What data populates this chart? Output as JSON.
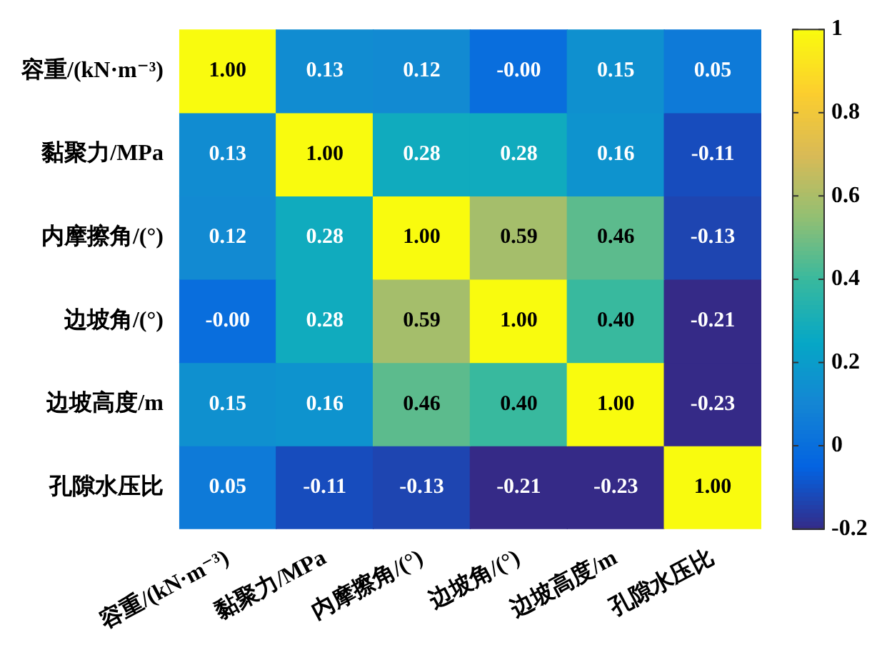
{
  "chart_data": {
    "type": "heatmap",
    "categories": [
      "容重/(kN·m⁻³)",
      "黏聚力/MPa",
      "内摩擦角/(°)",
      "边坡角/(°)",
      "边坡高度/m",
      "孔隙水压比"
    ],
    "y_categories": [
      "容重/(kN·m⁻³)",
      "黏聚力/MPa",
      "内摩擦角/(°)",
      "边坡角/(°)",
      "边坡高度/m",
      "孔隙水压比"
    ],
    "cells": [
      [
        1.0,
        0.13,
        0.12,
        -0.0,
        0.15,
        0.05
      ],
      [
        0.13,
        1.0,
        0.28,
        0.28,
        0.16,
        -0.11
      ],
      [
        0.12,
        0.28,
        1.0,
        0.59,
        0.46,
        -0.13
      ],
      [
        -0.0,
        0.28,
        0.59,
        1.0,
        0.4,
        -0.21
      ],
      [
        0.15,
        0.16,
        0.46,
        0.4,
        1.0,
        -0.23
      ],
      [
        0.05,
        -0.11,
        -0.13,
        -0.21,
        -0.23,
        1.0
      ]
    ],
    "cell_labels": [
      [
        "1.00",
        "0.13",
        "0.12",
        "-0.00",
        "0.15",
        "0.05"
      ],
      [
        "0.13",
        "1.00",
        "0.28",
        "0.28",
        "0.16",
        "-0.11"
      ],
      [
        "0.12",
        "0.28",
        "1.00",
        "0.59",
        "0.46",
        "-0.13"
      ],
      [
        "-0.00",
        "0.28",
        "0.59",
        "1.00",
        "0.40",
        "-0.21"
      ],
      [
        "0.15",
        "0.16",
        "0.46",
        "0.40",
        "1.00",
        "-0.23"
      ],
      [
        "0.05",
        "-0.11",
        "-0.13",
        "-0.21",
        "-0.23",
        "1.00"
      ]
    ],
    "clim": [
      -0.2,
      1
    ],
    "cticks": [
      -0.2,
      0,
      0.2,
      0.4,
      0.6,
      0.8,
      1
    ]
  }
}
